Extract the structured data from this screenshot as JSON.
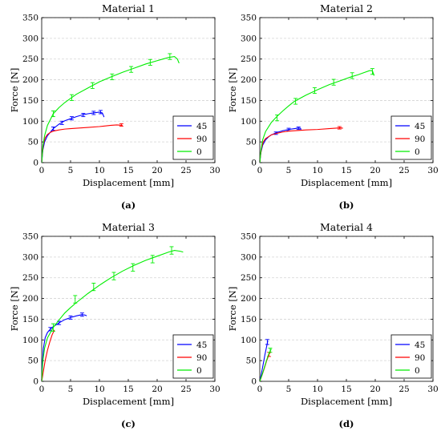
{
  "chart_data": [
    {
      "type": "line",
      "title": "Material 1",
      "caption": "(a)",
      "xlabel": "Displacement [mm]",
      "ylabel": "Force [N]",
      "xlim": [
        0,
        30
      ],
      "ylim": [
        0,
        350
      ],
      "xticks": [
        0,
        5,
        10,
        15,
        20,
        25,
        30
      ],
      "yticks": [
        0,
        50,
        100,
        150,
        200,
        250,
        300,
        350
      ],
      "grid": "horizontal-dashed",
      "legend": "lower-right",
      "series": [
        {
          "name": "45",
          "color": "#0000ff",
          "x": [
            0,
            0.2,
            0.5,
            1,
            2,
            3,
            4,
            5,
            6,
            7,
            8,
            9,
            10,
            10.5,
            10.8
          ],
          "y": [
            0,
            30,
            50,
            65,
            82,
            93,
            101,
            106,
            111,
            115,
            118,
            120,
            122,
            120,
            110
          ],
          "err_x": [
            2,
            3.5,
            5.2,
            7.2,
            9,
            10.2
          ],
          "err_y": [
            82,
            96,
            107,
            115,
            120,
            122
          ],
          "err": 4
        },
        {
          "name": "90",
          "color": "#ff0000",
          "x": [
            0,
            0.1,
            0.3,
            0.6,
            1,
            1.5,
            2,
            3,
            4,
            5,
            6,
            8,
            10,
            12,
            13,
            14
          ],
          "y": [
            0,
            20,
            45,
            60,
            68,
            73,
            76,
            79,
            81,
            82,
            83,
            85,
            87,
            90,
            91,
            90
          ],
          "err_x": [
            13.8
          ],
          "err_y": [
            91
          ],
          "err": 3
        },
        {
          "name": "0",
          "color": "#00ee00",
          "x": [
            0,
            0.2,
            0.5,
            1,
            2,
            3,
            4,
            5,
            6,
            8,
            10,
            12,
            14,
            16,
            18,
            20,
            21,
            22,
            23,
            23.5,
            23.8
          ],
          "y": [
            0,
            40,
            65,
            90,
            118,
            133,
            145,
            155,
            165,
            180,
            195,
            207,
            218,
            228,
            238,
            246,
            250,
            254,
            256,
            250,
            240
          ],
          "err_x": [
            2,
            5.2,
            8.8,
            12.2,
            15.5,
            18.8,
            22.2
          ],
          "err_y": [
            118,
            157,
            186,
            207,
            225,
            242,
            256
          ],
          "err": 7
        }
      ]
    },
    {
      "type": "line",
      "title": "Material 2",
      "caption": "(b)",
      "xlabel": "Displacement [mm]",
      "ylabel": "Force [N]",
      "xlim": [
        0,
        30
      ],
      "ylim": [
        0,
        350
      ],
      "xticks": [
        0,
        5,
        10,
        15,
        20,
        25,
        30
      ],
      "yticks": [
        0,
        50,
        100,
        150,
        200,
        250,
        300,
        350
      ],
      "grid": "horizontal-dashed",
      "legend": "lower-right",
      "series": [
        {
          "name": "45",
          "color": "#0000ff",
          "x": [
            0,
            0.2,
            0.5,
            1,
            1.5,
            2,
            3,
            4,
            5,
            6,
            6.5,
            7,
            7.2
          ],
          "y": [
            0,
            25,
            42,
            55,
            62,
            67,
            73,
            77,
            80,
            82,
            83,
            83,
            80
          ],
          "err_x": [
            2.8,
            5,
            6.7
          ],
          "err_y": [
            71,
            80,
            83
          ],
          "err": 3
        },
        {
          "name": "90",
          "color": "#ff0000",
          "x": [
            0,
            0.1,
            0.3,
            0.6,
            1,
            2,
            3,
            4,
            5,
            6,
            8,
            10,
            12,
            13,
            14,
            14.4
          ],
          "y": [
            0,
            15,
            35,
            50,
            58,
            67,
            71,
            74,
            76,
            77,
            79,
            80,
            82,
            83,
            84,
            83
          ],
          "err_x": [
            13.8
          ],
          "err_y": [
            84
          ],
          "err": 3
        },
        {
          "name": "0",
          "color": "#00ee00",
          "x": [
            0,
            0.2,
            0.5,
            1,
            2,
            3,
            4,
            5,
            6,
            8,
            10,
            12,
            14,
            16,
            17,
            18,
            19,
            19.5,
            19.8
          ],
          "y": [
            0,
            30,
            55,
            75,
            97,
            112,
            125,
            137,
            148,
            163,
            176,
            188,
            198,
            208,
            212,
            217,
            222,
            222,
            210
          ],
          "err_x": [
            3,
            6.2,
            9.5,
            12.8,
            16,
            19.5
          ],
          "err_y": [
            108,
            148,
            174,
            194,
            210,
            220
          ],
          "err": 7
        }
      ]
    },
    {
      "type": "line",
      "title": "Material 3",
      "caption": "(c)",
      "xlabel": "Displacement [mm]",
      "ylabel": "Force [N]",
      "xlim": [
        0,
        30
      ],
      "ylim": [
        0,
        350
      ],
      "xticks": [
        0,
        5,
        10,
        15,
        20,
        25,
        30
      ],
      "yticks": [
        0,
        50,
        100,
        150,
        200,
        250,
        300,
        350
      ],
      "grid": "horizontal-dashed",
      "legend": "lower-right",
      "series": [
        {
          "name": "45",
          "color": "#0000ff",
          "x": [
            0,
            0.1,
            0.3,
            0.6,
            1,
            1.5,
            2,
            3,
            4,
            5,
            6,
            7,
            7.5,
            7.8
          ],
          "y": [
            0,
            40,
            80,
            105,
            118,
            126,
            132,
            141,
            149,
            154,
            158,
            161,
            160,
            158
          ],
          "err_x": [
            1.5,
            3,
            5,
            7
          ],
          "err_y": [
            126,
            141,
            154,
            161
          ],
          "err": 4
        },
        {
          "name": "90",
          "color": "#ff0000",
          "x": [
            0,
            0.3,
            0.6,
            1,
            1.4,
            1.8,
            2.2
          ],
          "y": [
            0,
            25,
            50,
            75,
            95,
            112,
            124
          ],
          "err_x": [],
          "err_y": [],
          "err": 0
        },
        {
          "name": "0",
          "color": "#00ee00",
          "x": [
            0,
            0.2,
            0.5,
            1,
            2,
            3,
            4,
            5,
            6,
            8,
            10,
            12,
            14,
            16,
            18,
            20,
            22,
            23,
            24,
            24.5
          ],
          "y": [
            0,
            50,
            80,
            105,
            130,
            148,
            165,
            178,
            190,
            212,
            232,
            250,
            266,
            280,
            292,
            302,
            312,
            316,
            314,
            312
          ],
          "err_x": [
            2,
            5.8,
            9,
            12.5,
            15.8,
            19.2,
            22.5
          ],
          "err_y": [
            130,
            198,
            228,
            254,
            275,
            295,
            316
          ],
          "err": 9
        }
      ]
    },
    {
      "type": "line",
      "title": "Material 4",
      "caption": "(d)",
      "xlabel": "Displacement [mm]",
      "ylabel": "Force [N]",
      "xlim": [
        0,
        30
      ],
      "ylim": [
        0,
        350
      ],
      "xticks": [
        0,
        5,
        10,
        15,
        20,
        25,
        30
      ],
      "yticks": [
        0,
        50,
        100,
        150,
        200,
        250,
        300,
        350
      ],
      "grid": "horizontal-dashed",
      "legend": "lower-right",
      "series": [
        {
          "name": "45",
          "color": "#0000ff",
          "x": [
            0,
            0.3,
            0.6,
            0.9,
            1.2,
            1.4
          ],
          "y": [
            0,
            20,
            42,
            65,
            85,
            98
          ],
          "err_x": [
            1.3
          ],
          "err_y": [
            95
          ],
          "err": 6
        },
        {
          "name": "90",
          "color": "#ff0000",
          "x": [
            0,
            0.4,
            0.8,
            1.2,
            1.6,
            1.9
          ],
          "y": [
            0,
            15,
            32,
            50,
            65,
            72
          ],
          "err_x": [
            1.6
          ],
          "err_y": [
            65
          ],
          "err": 5
        },
        {
          "name": "0",
          "color": "#00ee00",
          "x": [
            0,
            0.4,
            0.8,
            1.2,
            1.6,
            2.0
          ],
          "y": [
            0,
            16,
            34,
            52,
            68,
            78
          ],
          "err_x": [
            1.8
          ],
          "err_y": [
            75
          ],
          "err": 5
        }
      ]
    }
  ]
}
